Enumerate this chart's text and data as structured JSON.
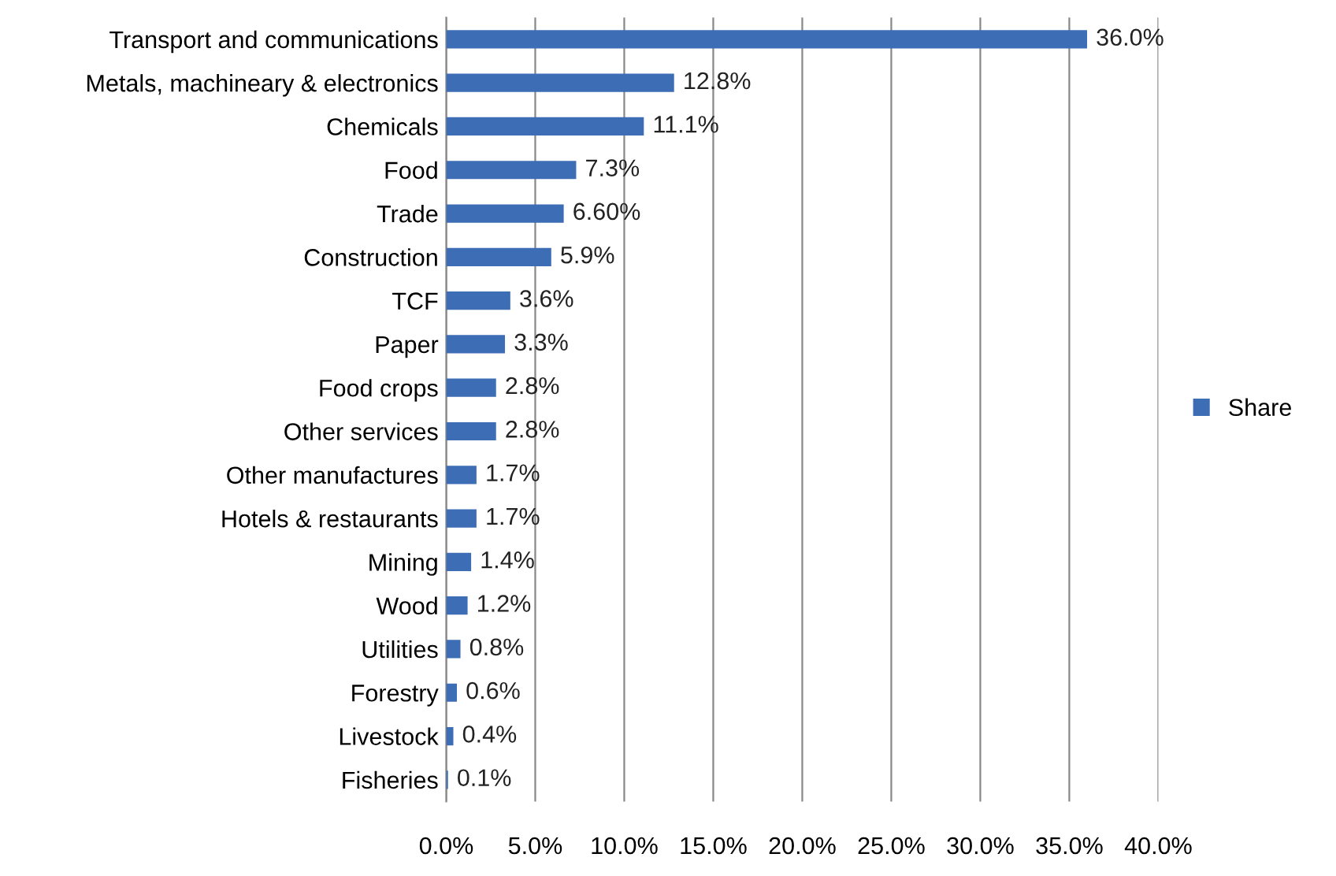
{
  "chart_data": {
    "type": "bar",
    "orientation": "horizontal",
    "categories": [
      "Transport and communications",
      "Metals, machineary & electronics",
      "Chemicals",
      "Food",
      "Trade",
      "Construction",
      "TCF",
      "Paper",
      "Food crops",
      "Other services",
      "Other manufactures",
      "Hotels & restaurants",
      "Mining",
      "Wood",
      "Utilities",
      "Forestry",
      "Livestock",
      "Fisheries"
    ],
    "series": [
      {
        "name": "Share",
        "color": "#3d6db5",
        "values": [
          36.0,
          12.8,
          11.1,
          7.3,
          6.6,
          5.9,
          3.6,
          3.3,
          2.8,
          2.8,
          1.7,
          1.7,
          1.4,
          1.2,
          0.8,
          0.6,
          0.4,
          0.1
        ],
        "value_labels": [
          "36.0%",
          "12.8%",
          "11.1%",
          "7.3%",
          "6.60%",
          "5.9%",
          "3.6%",
          "3.3%",
          "2.8%",
          "2.8%",
          "1.7%",
          "1.7%",
          "1.4%",
          "1.2%",
          "0.8%",
          "0.6%",
          "0.4%",
          "0.1%"
        ]
      }
    ],
    "xlim": [
      0,
      40
    ],
    "xticks": [
      {
        "value": 0,
        "label": "0.0%"
      },
      {
        "value": 5,
        "label": "5.0%"
      },
      {
        "value": 10,
        "label": "10.0%"
      },
      {
        "value": 15,
        "label": "15.0%"
      },
      {
        "value": 20,
        "label": "20.0%"
      },
      {
        "value": 25,
        "label": "25.0%"
      },
      {
        "value": 30,
        "label": "30.0%"
      },
      {
        "value": 35,
        "label": "35.0%"
      },
      {
        "value": 40,
        "label": "40.0%"
      }
    ],
    "grid": "x",
    "legend": "right"
  }
}
